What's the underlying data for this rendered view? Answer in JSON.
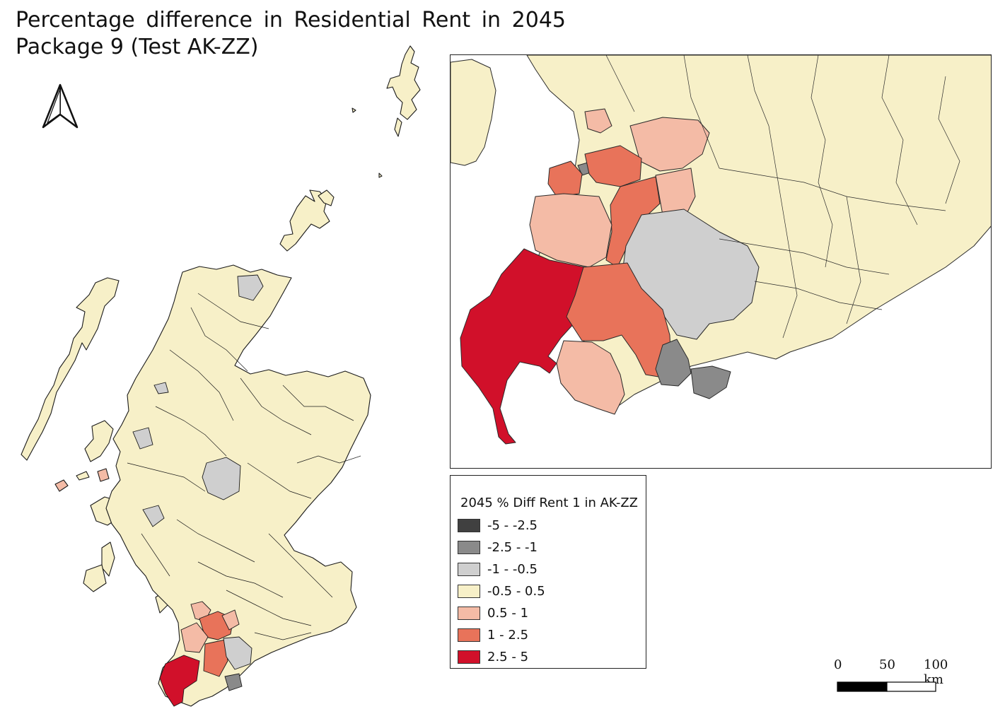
{
  "title": {
    "line1_words": [
      "Percentage",
      "difference",
      "in",
      "Residential",
      "Rent",
      "in",
      "2045"
    ],
    "line2": "Package 9 (Test AK-ZZ)"
  },
  "icons": {
    "north": "north-arrow-icon"
  },
  "colors": {
    "c1": "#404040",
    "c2": "#8a8a8a",
    "c3": "#cfcfcf",
    "c4": "#f7f0c8",
    "c5": "#f4bba6",
    "c6": "#e8735a",
    "c7": "#d1102a"
  },
  "legend": {
    "title": "2045 % Diff Rent 1 in AK-ZZ",
    "items": [
      {
        "label": "-5 - -2.5",
        "color": "#404040"
      },
      {
        "label": "-2.5 - -1",
        "color": "#8a8a8a"
      },
      {
        "label": "-1 - -0.5",
        "color": "#cfcfcf"
      },
      {
        "label": "-0.5 - 0.5",
        "color": "#f7f0c8"
      },
      {
        "label": "0.5 - 1",
        "color": "#f4bba6"
      },
      {
        "label": "1 - 2.5",
        "color": "#e8735a"
      },
      {
        "label": "2.5 - 5",
        "color": "#d1102a"
      }
    ]
  },
  "scalebar": {
    "ticks": [
      "0",
      "50",
      "100 km"
    ]
  }
}
